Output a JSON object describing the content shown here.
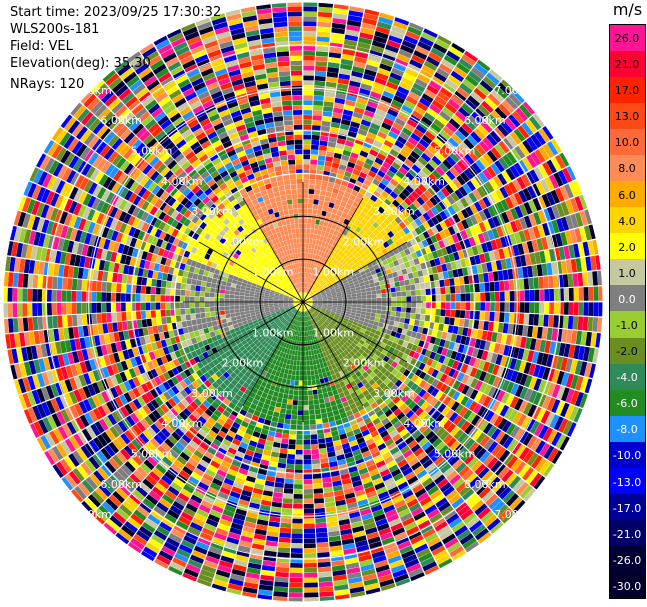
{
  "header": {
    "start_time": "Start time: 2023/09/25 17:30:32",
    "instrument": "WLS200s-181",
    "field": "Field: VEL",
    "elevation": "Elevation(deg): 35.30",
    "nrays": "NRays: 120"
  },
  "colorbar": {
    "unit": "m/s",
    "levels": [
      {
        "label": "26.0",
        "color": "#ff1493"
      },
      {
        "label": "21.0",
        "color": "#ff0033"
      },
      {
        "label": "17.0",
        "color": "#ff2200"
      },
      {
        "label": "13.0",
        "color": "#ff4a16"
      },
      {
        "label": "10.0",
        "color": "#ff6a3a"
      },
      {
        "label": "8.0",
        "color": "#ff8b55"
      },
      {
        "label": "6.0",
        "color": "#ffaa00"
      },
      {
        "label": "4.0",
        "color": "#ffd500"
      },
      {
        "label": "2.0",
        "color": "#ffff00"
      },
      {
        "label": "1.0",
        "color": "#c8c8a0"
      },
      {
        "label": "0.0",
        "color": "#7f7f7f"
      },
      {
        "label": "-1.0",
        "color": "#9acd32"
      },
      {
        "label": "-2.0",
        "color": "#6b8e23"
      },
      {
        "label": "-4.0",
        "color": "#2e8b57"
      },
      {
        "label": "-6.0",
        "color": "#228b22"
      },
      {
        "label": "-8.0",
        "color": "#1e90ff"
      },
      {
        "label": "-10.0",
        "color": "#0000cd"
      },
      {
        "label": "-13.0",
        "color": "#0000ff"
      },
      {
        "label": "-17.0",
        "color": "#000099"
      },
      {
        "label": "-21.0",
        "color": "#000066"
      },
      {
        "label": "-26.0",
        "color": "#000033"
      },
      {
        "label": "-30.0",
        "color": "#00002a"
      }
    ]
  },
  "chart_data": {
    "type": "heatmap",
    "projection": "polar-ppi",
    "field": "VEL",
    "unit": "m/s",
    "n_rays": 120,
    "range_rings_km": [
      1.0,
      2.0,
      3.0,
      4.0,
      5.0,
      6.0,
      7.0
    ],
    "range_ring_labels": [
      "1.00km",
      "2.00km",
      "3.00km",
      "4.00km",
      "5.00km",
      "6.00km",
      "7.00km"
    ],
    "clean_data_radius_km": 2.8,
    "sectors": [
      {
        "azimuth_from_deg": 0,
        "azimuth_to_deg": 30,
        "velocity_ms": 8.0
      },
      {
        "azimuth_from_deg": 30,
        "azimuth_to_deg": 60,
        "velocity_ms": 4.0
      },
      {
        "azimuth_from_deg": 60,
        "azimuth_to_deg": 110,
        "velocity_ms": 0.0
      },
      {
        "azimuth_from_deg": 110,
        "azimuth_to_deg": 160,
        "velocity_ms": -2.0
      },
      {
        "azimuth_from_deg": 160,
        "azimuth_to_deg": 210,
        "velocity_ms": -6.0
      },
      {
        "azimuth_from_deg": 210,
        "azimuth_to_deg": 250,
        "velocity_ms": -4.0
      },
      {
        "azimuth_from_deg": 250,
        "azimuth_to_deg": 290,
        "velocity_ms": 0.0
      },
      {
        "azimuth_from_deg": 290,
        "azimuth_to_deg": 330,
        "velocity_ms": 2.0
      },
      {
        "azimuth_from_deg": 330,
        "azimuth_to_deg": 360,
        "velocity_ms": 8.0
      }
    ],
    "outer_region": "noise"
  }
}
